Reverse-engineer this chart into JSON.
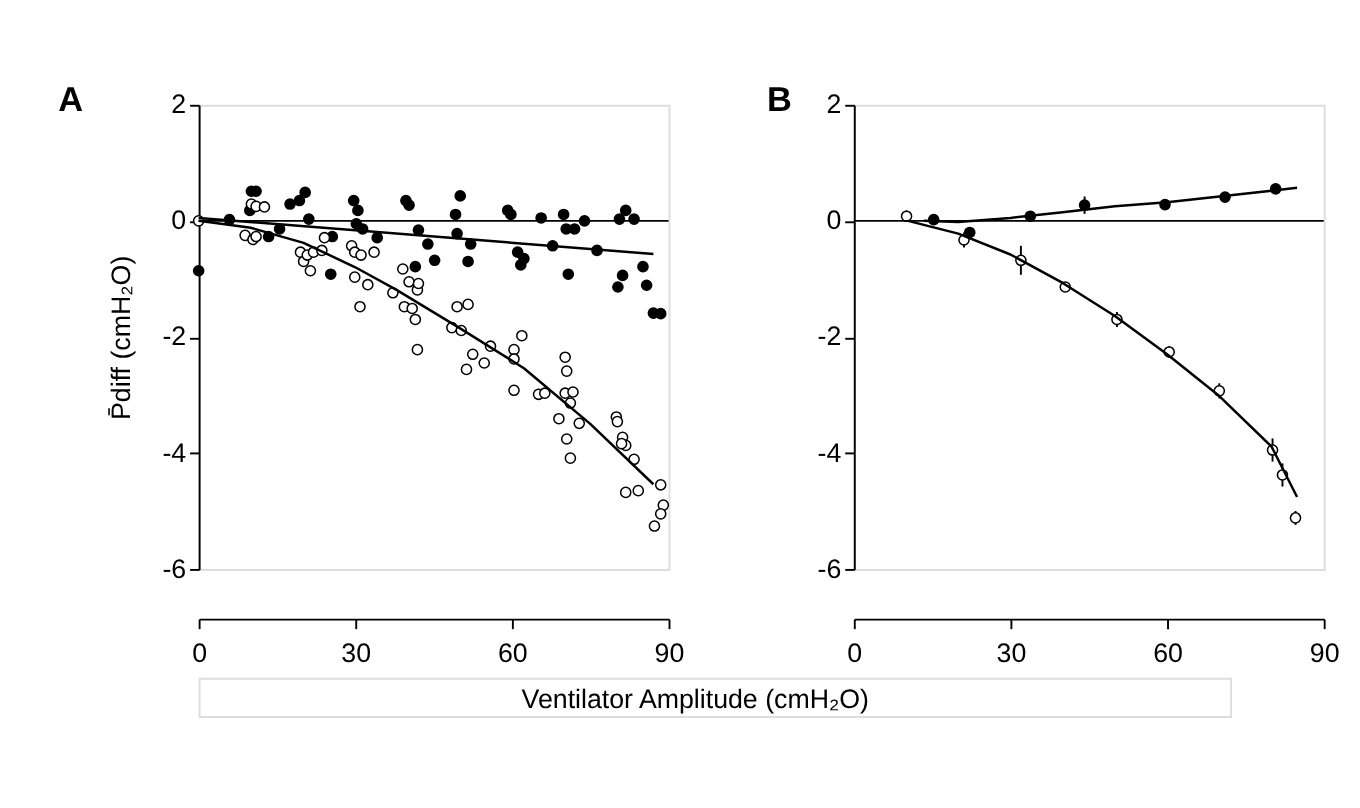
{
  "chart_data": [
    {
      "type": "scatter",
      "title": "A",
      "ylabel": "P̄diff (cmH₂O)",
      "xlabel": "Ventilator Amplitude (cmH₂O)",
      "xlim": [
        0,
        90
      ],
      "xticks": [
        0,
        30,
        60,
        90
      ],
      "ylim": [
        -6,
        2
      ],
      "yticks": [
        -6,
        -4,
        -2,
        0,
        2
      ],
      "grid": false,
      "ref_lines": [
        {
          "axis": "y",
          "value": 0,
          "color": "#000000"
        }
      ],
      "series": [
        {
          "type": "scatter",
          "marker": "circle",
          "color": "#000000",
          "x": [
            0,
            5.9,
            10.1,
            11,
            9.8,
            13.4,
            17.5,
            19.3,
            20.4,
            21.1,
            15.5,
            25.3,
            25.6,
            29.7,
            30.5,
            30.2,
            31.4,
            34.2,
            39.7,
            40.3,
            41.5,
            42.1,
            43.9,
            45.2,
            49.2,
            50.1,
            49.5,
            51.6,
            52.1,
            59.2,
            59.8,
            61.1,
            61.7,
            62.3,
            65.6,
            67.8,
            69.9,
            70.4,
            72,
            70.8,
            73.9,
            76.3,
            80.6,
            81.8,
            83.4,
            81.2,
            80.3,
            85.1,
            85.8,
            87.1,
            88.5
          ],
          "values": [
            -0.86,
            0.02,
            0.51,
            0.51,
            0.18,
            -0.27,
            0.29,
            0.35,
            0.49,
            0.03,
            -0.14,
            -0.92,
            -0.27,
            0.35,
            0.18,
            -0.05,
            -0.14,
            -0.29,
            0.35,
            0.27,
            -0.79,
            -0.16,
            -0.4,
            -0.68,
            0.11,
            0.43,
            -0.22,
            -0.7,
            -0.4,
            0.18,
            0.11,
            -0.54,
            -0.76,
            -0.65,
            0.05,
            -0.43,
            0.11,
            -0.14,
            -0.14,
            -0.92,
            0,
            -0.51,
            0.03,
            0.18,
            0.03,
            -0.94,
            -1.14,
            -0.79,
            -1.11,
            -1.59,
            -1.6
          ]
        },
        {
          "type": "scatter",
          "marker": "circle",
          "color": "#ffffff",
          "x": [
            0,
            10.1,
            11,
            12.6,
            8.9,
            10.4,
            11,
            19.5,
            20.1,
            21.4,
            20.8,
            22,
            23.6,
            24.1,
            29.3,
            29.9,
            31.1,
            33.6,
            29.9,
            32.4,
            30.9,
            37.2,
            39.1,
            40.3,
            41.9,
            42.1,
            39.4,
            40.9,
            41.5,
            41.9,
            48.5,
            50.3,
            49.5,
            51.6,
            52.5,
            51.3,
            54.7,
            55.9,
            60.4,
            60.4,
            61.9,
            60.4,
            65.1,
            66.3,
            70.2,
            70.5,
            70.2,
            71.7,
            71.2,
            69,
            70.5,
            71.2,
            72.9,
            80,
            80.2,
            81.2,
            81.8,
            81,
            83.4,
            81.8,
            84.2,
            87.3,
            88.5,
            89,
            88.5
          ],
          "values": [
            0,
            0.29,
            0.25,
            0.24,
            -0.25,
            -0.32,
            -0.27,
            -0.54,
            -0.7,
            -0.86,
            -0.59,
            -0.54,
            -0.51,
            -0.29,
            -0.43,
            -0.54,
            -0.59,
            -0.54,
            -0.97,
            -1.1,
            -1.48,
            -1.24,
            -0.83,
            -1.05,
            -1.19,
            -1.08,
            -1.48,
            -1.51,
            -1.7,
            -2.22,
            -1.84,
            -1.89,
            -1.48,
            -1.44,
            -2.3,
            -2.56,
            -2.45,
            -2.16,
            -2.22,
            -2.38,
            -1.98,
            -2.92,
            -2.99,
            -2.97,
            -2.35,
            -2.59,
            -2.97,
            -2.95,
            -3.14,
            -3.41,
            -3.76,
            -4.09,
            -3.49,
            -3.38,
            -3.46,
            -3.73,
            -3.87,
            -3.84,
            -4.11,
            -4.68,
            -4.65,
            -5.26,
            -4.55,
            -4.9,
            -5.05
          ]
        },
        {
          "type": "line",
          "marker": "none",
          "color": "#000000",
          "x": [
            0,
            87.1
          ],
          "values": [
            0.05,
            -0.57
          ]
        },
        {
          "type": "line",
          "marker": "none",
          "color": "#000000",
          "x": [
            0,
            10,
            20.1,
            30,
            37.9,
            50,
            62.3,
            75,
            87.1
          ],
          "values": [
            0,
            -0.12,
            -0.38,
            -0.8,
            -1.19,
            -1.85,
            -2.54,
            -3.5,
            -4.54
          ]
        }
      ]
    },
    {
      "type": "scatter",
      "title": "B",
      "xlim": [
        0,
        90
      ],
      "xticks": [
        0,
        30,
        60,
        90
      ],
      "ylim": [
        -6,
        2
      ],
      "yticks": [
        -6,
        -4,
        -2,
        0,
        2
      ],
      "grid": false,
      "ref_lines": [
        {
          "axis": "y",
          "value": 0,
          "color": "#000000"
        }
      ],
      "series": [
        {
          "type": "scatter",
          "marker": "circle",
          "color": "#ffffff",
          "x": [
            10.1,
            21.1,
            32,
            40.5,
            50.4,
            60.4,
            70,
            80.2,
            82.1,
            84.6
          ],
          "values": [
            0.08,
            -0.33,
            -0.68,
            -1.14,
            -1.7,
            -2.26,
            -2.93,
            -3.95,
            -4.38,
            -5.12
          ],
          "errors": [
            0.1,
            0.13,
            0.25,
            0.05,
            0.13,
            0.1,
            0.13,
            0.2,
            0.2,
            0.12
          ]
        },
        {
          "type": "scatter",
          "marker": "circle",
          "color": "#000000",
          "x": [
            15.3,
            22.2,
            33.8,
            44.2,
            59.6,
            71.1,
            80.8
          ],
          "values": [
            0.02,
            -0.2,
            0.08,
            0.27,
            0.28,
            0.41,
            0.55
          ],
          "errors": [
            null,
            null,
            null,
            0.15,
            null,
            null,
            null
          ]
        },
        {
          "type": "line",
          "marker": "none",
          "color": "#000000",
          "x": [
            10.4,
            20,
            30,
            40,
            50,
            60,
            70,
            80,
            84.9
          ],
          "values": [
            0,
            -0.22,
            -0.58,
            -1.07,
            -1.64,
            -2.3,
            -3.02,
            -3.89,
            -4.76
          ]
        },
        {
          "type": "line",
          "marker": "none",
          "color": "#000000",
          "x": [
            13.4,
            20,
            30,
            40,
            50,
            60,
            70,
            80,
            84.9
          ],
          "values": [
            0,
            -0.02,
            0.05,
            0.15,
            0.25,
            0.32,
            0.42,
            0.52,
            0.57
          ]
        }
      ]
    }
  ]
}
